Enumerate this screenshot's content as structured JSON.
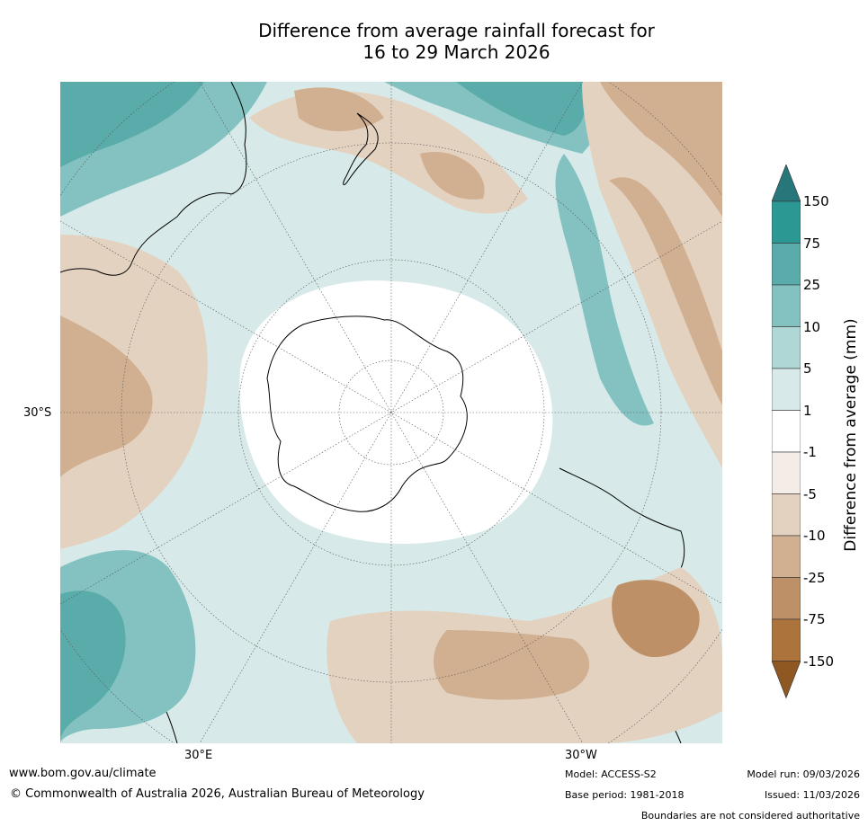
{
  "title_line1": "Difference from average rainfall forecast for",
  "title_line2": "16 to 29 March 2026",
  "map": {
    "lat_label": "30°S",
    "lon_label_east": "30°E",
    "lon_label_west": "30°W"
  },
  "colorbar": {
    "title": "Difference from average (mm)",
    "ticks": [
      "150",
      "75",
      "25",
      "10",
      "5",
      "1",
      "-1",
      "-5",
      "-10",
      "-25",
      "-75",
      "-150"
    ],
    "colors": [
      "#27777a",
      "#2c9894",
      "#5aacab",
      "#83c2c0",
      "#afd7d6",
      "#d7eae9",
      "#ffffff",
      "#f4ece7",
      "#e4d2c1",
      "#d1b092",
      "#bd9068",
      "#ac733c",
      "#8f5721"
    ]
  },
  "footer": {
    "website": "www.bom.gov.au/climate",
    "copyright": "© Commonwealth of Australia 2026, Australian Bureau of Meteorology",
    "model": "Model: ACCESS-S2",
    "base_period": "Base period: 1981-2018",
    "model_run": "Model run: 09/03/2026",
    "issued": "Issued: 11/03/2026",
    "disclaimer": "Boundaries are not considered authoritative"
  }
}
